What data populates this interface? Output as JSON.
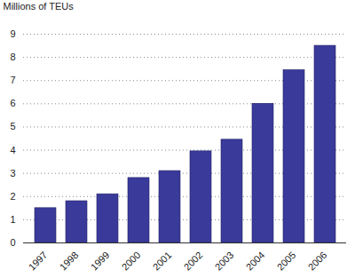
{
  "chart_data": {
    "type": "bar",
    "ylabel": "Millions of TEUs",
    "categories": [
      "1997",
      "1998",
      "1999",
      "2000",
      "2001",
      "2002",
      "2003",
      "2004",
      "2005",
      "2006"
    ],
    "values": [
      1.5,
      1.8,
      2.1,
      2.8,
      3.1,
      3.95,
      4.45,
      6.0,
      7.45,
      8.5
    ],
    "color": "#3a3a9a",
    "ylim": [
      0,
      9
    ],
    "yticks": [
      0,
      1,
      2,
      3,
      4,
      5,
      6,
      7,
      8,
      9
    ],
    "grid": true
  }
}
